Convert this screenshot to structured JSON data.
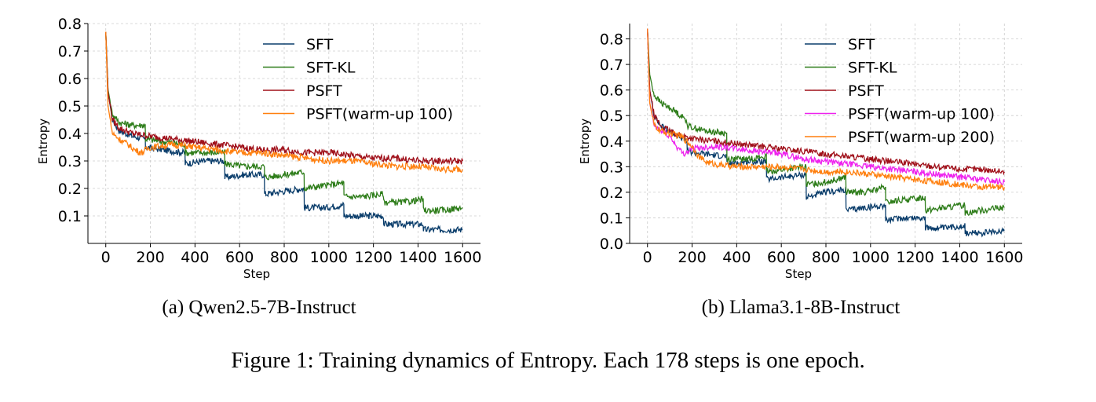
{
  "figure_caption": "Figure 1: Training dynamics of Entropy. Each 178 steps is one epoch.",
  "colors": {
    "SFT": "#0a3d6b",
    "SFT-KL": "#2e7d1a",
    "PSFT": "#a0101a",
    "PSFT(warm-up 100)": "#ff7f0e",
    "PSFT(warm-up 100)_b": "#ee22ee",
    "PSFT(warm-up 200)": "#ff7f0e"
  },
  "chart_data": [
    {
      "type": "line",
      "subcaption": "(a) Qwen2.5-7B-Instruct",
      "xlabel": "Step",
      "ylabel": "Entropy",
      "xlim": [
        -80,
        1680
      ],
      "ylim": [
        0.0,
        0.8
      ],
      "xticks": [
        "0",
        "200",
        "400",
        "600",
        "800",
        "1000",
        "1200",
        "1400",
        "1600"
      ],
      "yticks": [
        "0.1",
        "0.2",
        "0.3",
        "0.4",
        "0.5",
        "0.6",
        "0.7",
        "0.8"
      ],
      "grid": true,
      "legend_position": "top-right",
      "series": [
        {
          "name": "SFT",
          "x": [
            0,
            10,
            30,
            60,
            120,
            177,
            178,
            260,
            355,
            356,
            450,
            533,
            534,
            620,
            711,
            712,
            800,
            889,
            890,
            980,
            1067,
            1068,
            1150,
            1245,
            1246,
            1340,
            1423,
            1424,
            1500,
            1600
          ],
          "y": [
            0.77,
            0.55,
            0.45,
            0.41,
            0.39,
            0.38,
            0.35,
            0.34,
            0.33,
            0.29,
            0.3,
            0.3,
            0.24,
            0.25,
            0.25,
            0.18,
            0.19,
            0.2,
            0.13,
            0.13,
            0.14,
            0.1,
            0.1,
            0.1,
            0.07,
            0.07,
            0.07,
            0.05,
            0.05,
            0.05
          ]
        },
        {
          "name": "SFT-KL",
          "x": [
            0,
            10,
            30,
            60,
            120,
            177,
            178,
            260,
            355,
            356,
            450,
            533,
            534,
            620,
            711,
            712,
            800,
            889,
            890,
            980,
            1067,
            1068,
            1150,
            1245,
            1246,
            1340,
            1423,
            1424,
            1500,
            1600
          ],
          "y": [
            0.77,
            0.56,
            0.47,
            0.44,
            0.43,
            0.43,
            0.38,
            0.37,
            0.36,
            0.33,
            0.33,
            0.33,
            0.29,
            0.28,
            0.28,
            0.24,
            0.25,
            0.26,
            0.2,
            0.21,
            0.22,
            0.17,
            0.17,
            0.18,
            0.15,
            0.15,
            0.16,
            0.12,
            0.12,
            0.13
          ]
        },
        {
          "name": "PSFT",
          "x": [
            0,
            10,
            30,
            60,
            120,
            200,
            300,
            400,
            500,
            600,
            700,
            800,
            900,
            1000,
            1100,
            1200,
            1300,
            1400,
            1500,
            1600
          ],
          "y": [
            0.77,
            0.55,
            0.45,
            0.42,
            0.4,
            0.39,
            0.38,
            0.37,
            0.36,
            0.35,
            0.34,
            0.34,
            0.33,
            0.33,
            0.32,
            0.31,
            0.31,
            0.3,
            0.3,
            0.3
          ]
        },
        {
          "name": "PSFT(warm-up 100)",
          "x": [
            0,
            10,
            30,
            60,
            100,
            130,
            160,
            200,
            300,
            400,
            500,
            600,
            700,
            800,
            900,
            1000,
            1100,
            1200,
            1300,
            1400,
            1500,
            1600
          ],
          "y": [
            0.77,
            0.5,
            0.4,
            0.38,
            0.36,
            0.34,
            0.33,
            0.35,
            0.36,
            0.35,
            0.34,
            0.33,
            0.33,
            0.32,
            0.31,
            0.3,
            0.3,
            0.29,
            0.28,
            0.28,
            0.27,
            0.27
          ]
        }
      ]
    },
    {
      "type": "line",
      "subcaption": "(b) Llama3.1-8B-Instruct",
      "xlabel": "Step",
      "ylabel": "Entropy",
      "xlim": [
        -80,
        1680
      ],
      "ylim": [
        0.0,
        0.86
      ],
      "xticks": [
        "0",
        "200",
        "400",
        "600",
        "800",
        "1000",
        "1200",
        "1400",
        "1600"
      ],
      "yticks": [
        "0.0",
        "0.1",
        "0.2",
        "0.3",
        "0.4",
        "0.5",
        "0.6",
        "0.7",
        "0.8"
      ],
      "grid": true,
      "legend_position": "top-right",
      "series": [
        {
          "name": "SFT",
          "x": [
            0,
            10,
            30,
            60,
            120,
            177,
            178,
            260,
            355,
            356,
            450,
            533,
            534,
            620,
            711,
            712,
            800,
            889,
            890,
            980,
            1067,
            1068,
            1150,
            1245,
            1246,
            1340,
            1423,
            1424,
            1500,
            1600
          ],
          "y": [
            0.84,
            0.6,
            0.5,
            0.46,
            0.43,
            0.4,
            0.36,
            0.35,
            0.34,
            0.31,
            0.32,
            0.32,
            0.25,
            0.26,
            0.27,
            0.18,
            0.2,
            0.21,
            0.13,
            0.14,
            0.15,
            0.09,
            0.1,
            0.1,
            0.06,
            0.06,
            0.07,
            0.04,
            0.04,
            0.05
          ]
        },
        {
          "name": "SFT-KL",
          "x": [
            0,
            10,
            30,
            60,
            120,
            177,
            178,
            260,
            355,
            356,
            450,
            533,
            534,
            620,
            711,
            712,
            800,
            889,
            890,
            980,
            1067,
            1068,
            1150,
            1245,
            1246,
            1340,
            1423,
            1424,
            1500,
            1600
          ],
          "y": [
            0.84,
            0.66,
            0.58,
            0.55,
            0.52,
            0.48,
            0.46,
            0.44,
            0.43,
            0.33,
            0.33,
            0.34,
            0.28,
            0.29,
            0.3,
            0.23,
            0.24,
            0.26,
            0.2,
            0.2,
            0.22,
            0.16,
            0.17,
            0.18,
            0.13,
            0.14,
            0.15,
            0.12,
            0.13,
            0.14
          ]
        },
        {
          "name": "PSFT",
          "x": [
            0,
            10,
            30,
            60,
            120,
            200,
            300,
            400,
            500,
            600,
            700,
            800,
            900,
            1000,
            1100,
            1200,
            1300,
            1400,
            1500,
            1600
          ],
          "y": [
            0.84,
            0.6,
            0.5,
            0.46,
            0.43,
            0.41,
            0.4,
            0.39,
            0.38,
            0.37,
            0.36,
            0.35,
            0.34,
            0.33,
            0.32,
            0.31,
            0.3,
            0.29,
            0.29,
            0.28
          ]
        },
        {
          "name": "PSFT(warm-up 100)",
          "x": [
            0,
            10,
            30,
            60,
            100,
            130,
            160,
            200,
            300,
            400,
            500,
            600,
            700,
            800,
            900,
            1000,
            1100,
            1200,
            1300,
            1400,
            1500,
            1600
          ],
          "y": [
            0.84,
            0.55,
            0.46,
            0.44,
            0.42,
            0.38,
            0.35,
            0.37,
            0.38,
            0.37,
            0.36,
            0.35,
            0.33,
            0.32,
            0.31,
            0.3,
            0.29,
            0.28,
            0.27,
            0.26,
            0.25,
            0.24
          ]
        },
        {
          "name": "PSFT(warm-up 200)",
          "x": [
            0,
            10,
            30,
            60,
            100,
            150,
            200,
            230,
            260,
            300,
            400,
            500,
            600,
            700,
            800,
            900,
            1000,
            1100,
            1200,
            1300,
            1400,
            1500,
            1600
          ],
          "y": [
            0.84,
            0.55,
            0.46,
            0.44,
            0.43,
            0.42,
            0.38,
            0.34,
            0.32,
            0.31,
            0.3,
            0.3,
            0.3,
            0.29,
            0.28,
            0.28,
            0.27,
            0.26,
            0.25,
            0.24,
            0.23,
            0.22,
            0.22
          ]
        }
      ]
    }
  ]
}
